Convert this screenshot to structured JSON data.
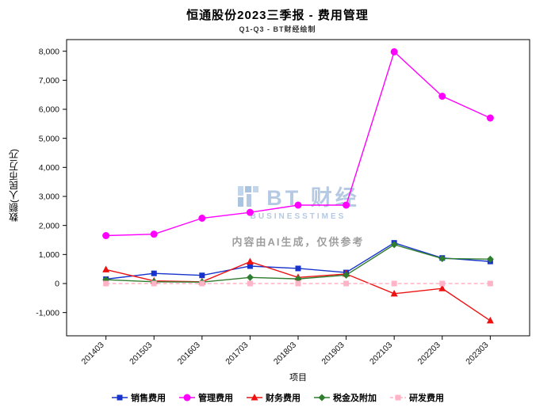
{
  "title": "恒通股份2023三季报 - 费用管理",
  "subtitle": "Q1-Q3 - BT财经绘制",
  "watermark": {
    "brand": "BT 财经",
    "brand_sub": "BUSINESSTIMES",
    "note": "内容由AI生成，仅供参考",
    "brand_color": "#b5c9e2",
    "note_color": "#9e9e9e"
  },
  "chart_data": {
    "type": "line",
    "title": "恒通股份2023三季报 - 费用管理",
    "subtitle": "Q1-Q3 - BT财经绘制",
    "xlabel": "项目",
    "ylabel": "数额(人民币万元)",
    "categories": [
      "201403",
      "201503",
      "201603",
      "201703",
      "201803",
      "201903",
      "202103",
      "202203",
      "202303"
    ],
    "series": [
      {
        "name": "销售费用",
        "color": "#1733cc",
        "marker": "square",
        "dash": false,
        "values": [
          150,
          350,
          280,
          600,
          520,
          380,
          1400,
          880,
          760
        ]
      },
      {
        "name": "管理费用",
        "color": "#ff00ff",
        "marker": "circle",
        "dash": false,
        "values": [
          1650,
          1700,
          2250,
          2450,
          2700,
          2700,
          7980,
          6450,
          5700
        ]
      },
      {
        "name": "财务费用",
        "color": "#ee1111",
        "marker": "triangle",
        "dash": false,
        "values": [
          480,
          90,
          60,
          750,
          210,
          330,
          -350,
          -170,
          -1280
        ]
      },
      {
        "name": "税金及附加",
        "color": "#2f7d2f",
        "marker": "diamond",
        "dash": false,
        "values": [
          130,
          60,
          50,
          210,
          160,
          290,
          1340,
          860,
          840
        ]
      },
      {
        "name": "研发费用",
        "color": "#ffb3c6",
        "marker": "square",
        "dash": true,
        "values": [
          0,
          0,
          0,
          0,
          0,
          0,
          0,
          0,
          0
        ]
      }
    ],
    "ylim": [
      -1800,
      8400
    ],
    "yticks": [
      -1000,
      0,
      1000,
      2000,
      3000,
      4000,
      5000,
      6000,
      7000,
      8000
    ],
    "grid": false,
    "legend_position": "bottom"
  }
}
